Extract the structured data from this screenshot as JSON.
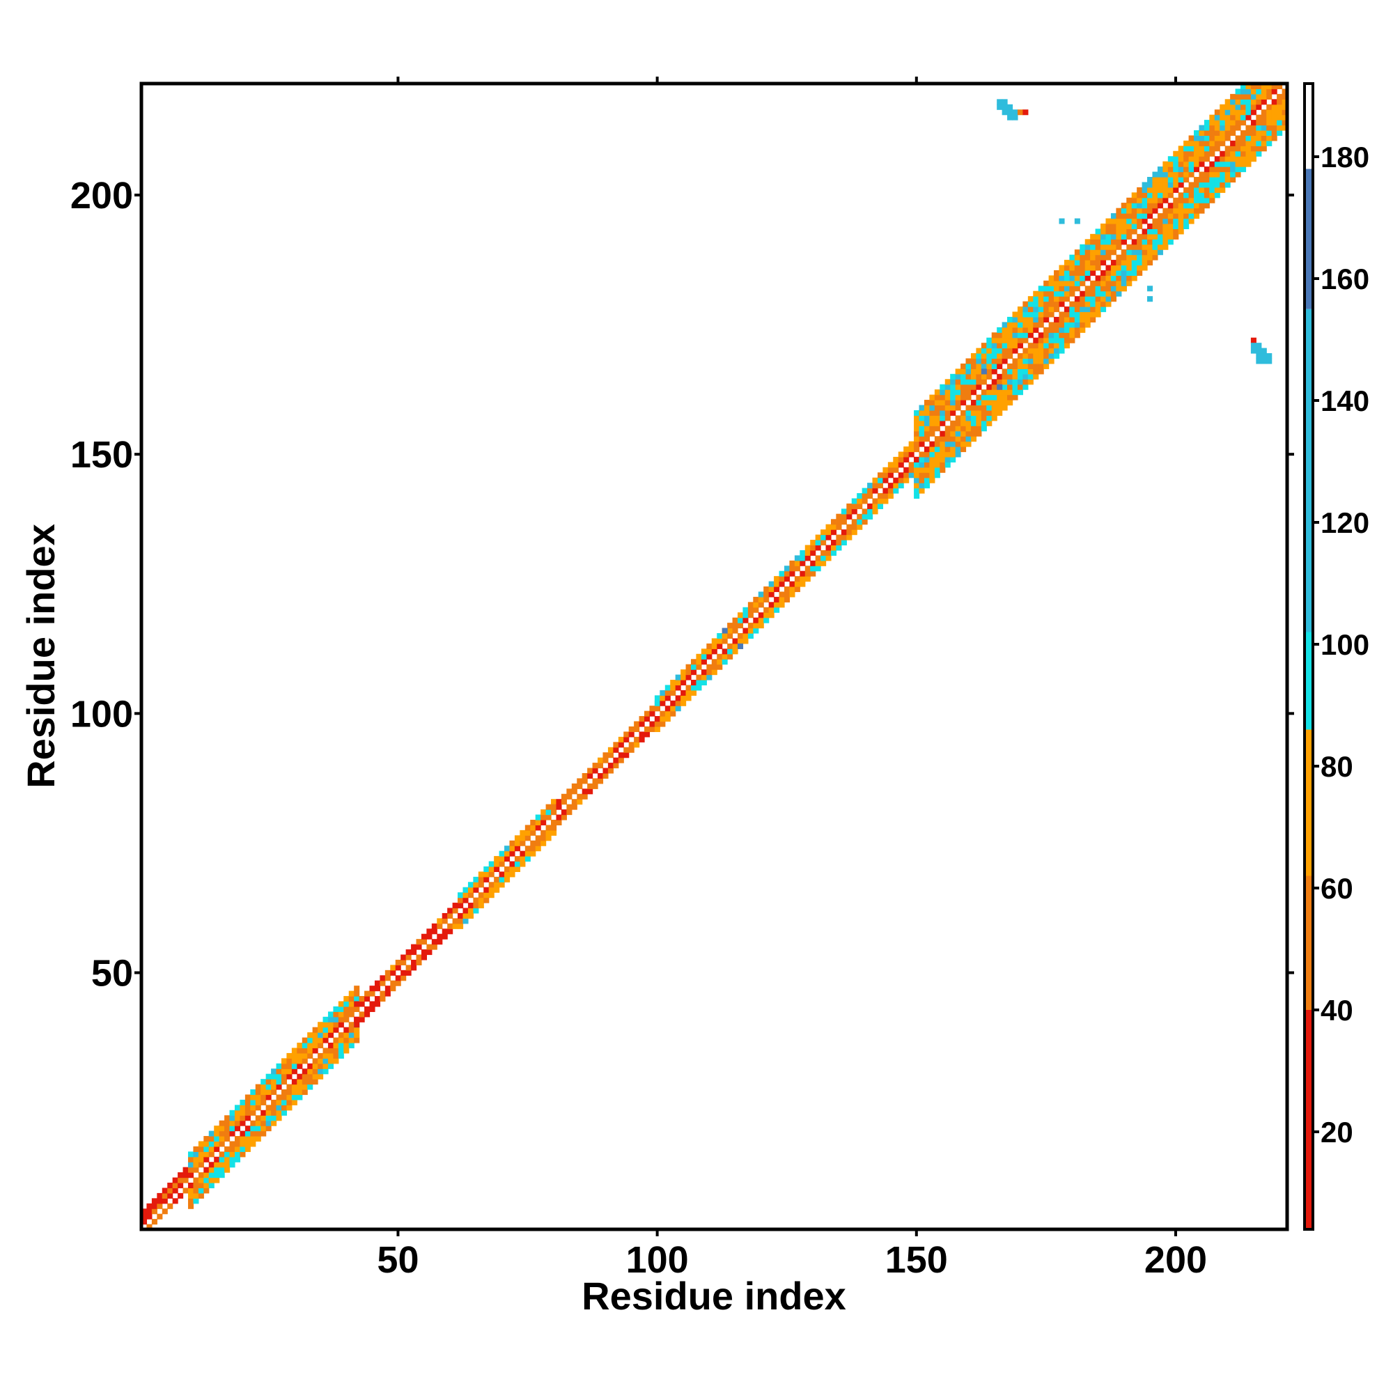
{
  "chart_data": {
    "type": "heatmap",
    "title": "",
    "xlabel": "Residue index",
    "ylabel": "Residue index",
    "xlim": [
      1,
      221
    ],
    "ylim": [
      1,
      221
    ],
    "x_ticks": [
      50,
      100,
      150,
      200
    ],
    "y_ticks": [
      50,
      100,
      150,
      200
    ],
    "colorbar": {
      "range": [
        4,
        192
      ],
      "ticks": [
        20,
        40,
        60,
        80,
        100,
        120,
        140,
        160,
        180
      ],
      "bands": [
        {
          "from": 4,
          "to": 40,
          "color": "#e41a0c"
        },
        {
          "from": 40,
          "to": 62,
          "color": "#f07d10"
        },
        {
          "from": 62,
          "to": 86,
          "color": "#ffa100"
        },
        {
          "from": 86,
          "to": 102,
          "color": "#14e1e6"
        },
        {
          "from": 102,
          "to": 155,
          "color": "#2fbcdc"
        },
        {
          "from": 155,
          "to": 178,
          "color": "#4a78b8"
        },
        {
          "from": 178,
          "to": 192,
          "color": "#ffffff"
        }
      ]
    },
    "band_segments": [
      {
        "from": 1,
        "to": 10,
        "offsets": [
          -1,
          0,
          1,
          2,
          3
        ],
        "dominant_value": 25
      },
      {
        "from": 10,
        "to": 42,
        "offsets": [
          -5,
          -4,
          -3,
          -2,
          -1,
          0,
          1,
          2,
          3,
          4,
          5
        ],
        "dominant_value": 70
      },
      {
        "from": 42,
        "to": 62,
        "offsets": [
          -2,
          -1,
          0,
          1,
          2
        ],
        "dominant_value": 25
      },
      {
        "from": 62,
        "to": 80,
        "offsets": [
          -3,
          -2,
          -1,
          0,
          1,
          2,
          3
        ],
        "dominant_value": 75
      },
      {
        "from": 80,
        "to": 100,
        "offsets": [
          -2,
          -1,
          0,
          1,
          2
        ],
        "dominant_value": 40
      },
      {
        "from": 100,
        "to": 135,
        "offsets": [
          -3,
          -2,
          -1,
          0,
          1,
          2,
          3
        ],
        "dominant_value": 70
      },
      {
        "from": 135,
        "to": 150,
        "offsets": [
          -3,
          -2,
          -1,
          0,
          1,
          2,
          3
        ],
        "dominant_value": 55
      },
      {
        "from": 150,
        "to": 168,
        "offsets": [
          -8,
          -7,
          -6,
          -5,
          -4,
          -3,
          -2,
          -1,
          0,
          1,
          2,
          3,
          4,
          5,
          6,
          7,
          8
        ],
        "dominant_value": 60
      },
      {
        "from": 168,
        "to": 190,
        "offsets": [
          -8,
          -7,
          -6,
          -5,
          -4,
          -3,
          -2,
          -1,
          0,
          1,
          2,
          3,
          4,
          5,
          6,
          7,
          8
        ],
        "dominant_value": 60
      },
      {
        "from": 190,
        "to": 221,
        "offsets": [
          -8,
          -7,
          -6,
          -5,
          -4,
          -3,
          -2,
          -1,
          0,
          1,
          2,
          3,
          4,
          5,
          6,
          7,
          8
        ],
        "dominant_value": 60
      }
    ],
    "off_diagonal_contacts": [
      {
        "x": 166,
        "y": 218,
        "value": 120
      },
      {
        "x": 167,
        "y": 218,
        "value": 120
      },
      {
        "x": 166,
        "y": 217,
        "value": 120
      },
      {
        "x": 167,
        "y": 217,
        "value": 120
      },
      {
        "x": 168,
        "y": 217,
        "value": 120
      },
      {
        "x": 167,
        "y": 216,
        "value": 120
      },
      {
        "x": 168,
        "y": 216,
        "value": 120
      },
      {
        "x": 169,
        "y": 216,
        "value": 120
      },
      {
        "x": 168,
        "y": 215,
        "value": 120
      },
      {
        "x": 169,
        "y": 215,
        "value": 120
      },
      {
        "x": 170,
        "y": 216,
        "value": 45
      },
      {
        "x": 171,
        "y": 216,
        "value": 10
      },
      {
        "x": 178,
        "y": 195,
        "value": 120
      },
      {
        "x": 181,
        "y": 195,
        "value": 120
      },
      {
        "x": 195,
        "y": 182,
        "value": 120
      },
      {
        "x": 195,
        "y": 180,
        "value": 120
      },
      {
        "x": 215,
        "y": 172,
        "value": 10
      },
      {
        "x": 215,
        "y": 171,
        "value": 120
      },
      {
        "x": 216,
        "y": 171,
        "value": 120
      },
      {
        "x": 215,
        "y": 170,
        "value": 120
      },
      {
        "x": 216,
        "y": 170,
        "value": 120
      },
      {
        "x": 217,
        "y": 170,
        "value": 120
      },
      {
        "x": 216,
        "y": 169,
        "value": 120
      },
      {
        "x": 217,
        "y": 169,
        "value": 120
      },
      {
        "x": 218,
        "y": 169,
        "value": 120
      },
      {
        "x": 216,
        "y": 168,
        "value": 120
      },
      {
        "x": 217,
        "y": 168,
        "value": 120
      },
      {
        "x": 218,
        "y": 168,
        "value": 120
      },
      {
        "x": 163,
        "y": 166,
        "value": 165
      },
      {
        "x": 166,
        "y": 163,
        "value": 165
      },
      {
        "x": 113,
        "y": 116,
        "value": 165
      },
      {
        "x": 116,
        "y": 113,
        "value": 165
      }
    ],
    "grid": false,
    "legend": "colorbar-right"
  }
}
